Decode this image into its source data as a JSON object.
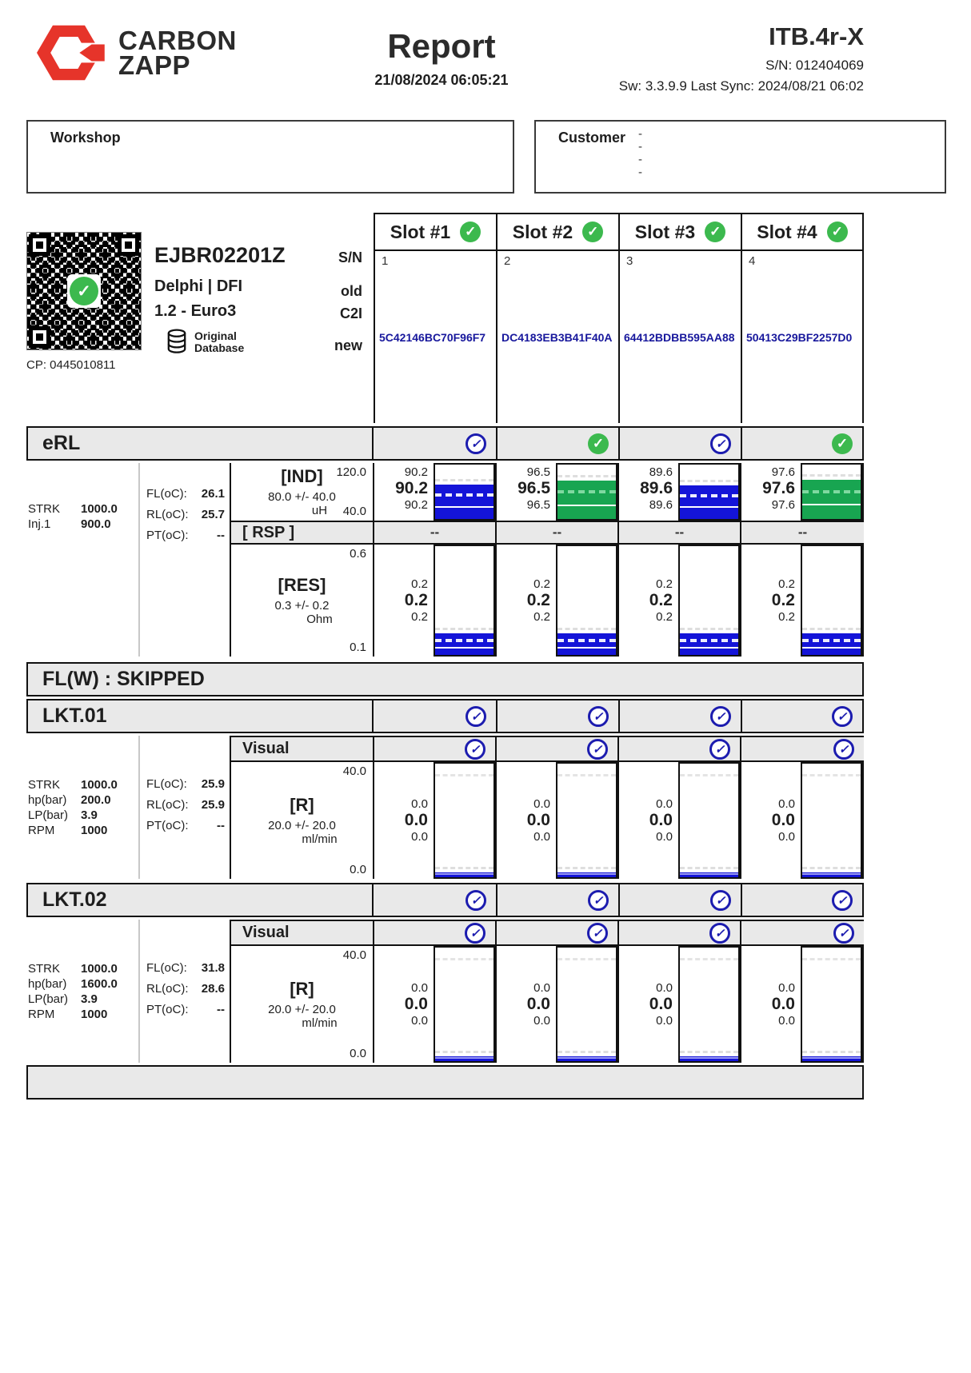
{
  "header": {
    "brand_line1": "CARBON",
    "brand_line2": "ZAPP",
    "title": "Report",
    "datetime": "21/08/2024 06:05:21",
    "model": "ITB.4r-X",
    "serial": "S/N: 012404069",
    "sync": "Sw: 3.3.9.9 Last Sync: 2024/08/21 06:02"
  },
  "workshop": {
    "label": "Workshop"
  },
  "customer": {
    "label": "Customer",
    "dashes": [
      "-",
      "-",
      "-",
      "-"
    ]
  },
  "injector": {
    "code": "EJBR02201Z",
    "brand": "Delphi | DFI",
    "variant": "1.2 - Euro3",
    "db_line1": "Original",
    "db_line2": "Database",
    "cp": "CP: 0445010811",
    "row_labels": {
      "sn": "S/N",
      "old": "old",
      "c2i": "C2I",
      "new": "new"
    }
  },
  "slots": [
    {
      "label": "Slot #1",
      "number": "1",
      "c2i_new": "5C42146BC70F96F7",
      "status": "green"
    },
    {
      "label": "Slot #2",
      "number": "2",
      "c2i_new": "DC4183EB3B41F40A",
      "status": "green"
    },
    {
      "label": "Slot #3",
      "number": "3",
      "c2i_new": "64412BDBB595AA88",
      "status": "green"
    },
    {
      "label": "Slot #4",
      "number": "4",
      "c2i_new": "50413C29BF2257D0",
      "status": "green"
    }
  ],
  "erl": {
    "title": "eRL",
    "statuses": [
      "blue",
      "green",
      "blue",
      "green"
    ],
    "params": [
      {
        "label": "STRK",
        "value": "1000.0"
      },
      {
        "label": "Inj.1",
        "value": "900.0"
      }
    ],
    "temps": [
      {
        "label": "FL(oC):",
        "value": "26.1"
      },
      {
        "label": "RL(oC):",
        "value": "25.7"
      },
      {
        "label": "PT(oC):",
        "value": "--"
      }
    ],
    "ind": {
      "name": "[IND]",
      "tolerance": "80.0 +/- 40.0",
      "unit": "uH",
      "axis_max": "120.0",
      "axis_min": "40.0",
      "results": [
        {
          "max": "90.2",
          "avg": "90.2",
          "min": "90.2",
          "bar_pct": 63,
          "color": "blue"
        },
        {
          "max": "96.5",
          "avg": "96.5",
          "min": "96.5",
          "bar_pct": 71,
          "color": "green"
        },
        {
          "max": "89.6",
          "avg": "89.6",
          "min": "89.6",
          "bar_pct": 62,
          "color": "blue"
        },
        {
          "max": "97.6",
          "avg": "97.6",
          "min": "97.6",
          "bar_pct": 72,
          "color": "green"
        }
      ]
    },
    "rsp": {
      "name": "[ RSP ]",
      "results": [
        "--",
        "--",
        "--",
        "--"
      ]
    },
    "res": {
      "name": "[RES]",
      "tolerance": "0.3 +/- 0.2",
      "unit": "Ohm",
      "axis_max": "0.6",
      "axis_min": "0.1",
      "results": [
        {
          "max": "0.2",
          "avg": "0.2",
          "min": "0.2",
          "bar_pct": 20,
          "color": "blue"
        },
        {
          "max": "0.2",
          "avg": "0.2",
          "min": "0.2",
          "bar_pct": 20,
          "color": "blue"
        },
        {
          "max": "0.2",
          "avg": "0.2",
          "min": "0.2",
          "bar_pct": 20,
          "color": "blue"
        },
        {
          "max": "0.2",
          "avg": "0.2",
          "min": "0.2",
          "bar_pct": 20,
          "color": "blue"
        }
      ]
    }
  },
  "flw": {
    "title": "FL(W) : SKIPPED"
  },
  "lkt01": {
    "title": "LKT.01",
    "statuses": [
      "blue",
      "blue",
      "blue",
      "blue"
    ],
    "visual_label": "Visual",
    "visual_statuses": [
      "blue",
      "blue",
      "blue",
      "blue"
    ],
    "params": [
      {
        "label": "STRK",
        "value": "1000.0"
      },
      {
        "label": "hp(bar)",
        "value": "200.0"
      },
      {
        "label": "LP(bar)",
        "value": "3.9"
      },
      {
        "label": "RPM",
        "value": "1000"
      }
    ],
    "temps": [
      {
        "label": "FL(oC):",
        "value": "25.9"
      },
      {
        "label": "RL(oC):",
        "value": "25.9"
      },
      {
        "label": "PT(oC):",
        "value": "--"
      }
    ],
    "r": {
      "name": "[R]",
      "tolerance": "20.0 +/- 20.0",
      "unit": "ml/min",
      "axis_max": "40.0",
      "axis_min": "0.0",
      "results": [
        {
          "max": "0.0",
          "avg": "0.0",
          "min": "0.0",
          "bar_pct": 4,
          "color": "blue"
        },
        {
          "max": "0.0",
          "avg": "0.0",
          "min": "0.0",
          "bar_pct": 4,
          "color": "blue"
        },
        {
          "max": "0.0",
          "avg": "0.0",
          "min": "0.0",
          "bar_pct": 4,
          "color": "blue"
        },
        {
          "max": "0.0",
          "avg": "0.0",
          "min": "0.0",
          "bar_pct": 4,
          "color": "blue"
        }
      ]
    }
  },
  "lkt02": {
    "title": "LKT.02",
    "statuses": [
      "blue",
      "blue",
      "blue",
      "blue"
    ],
    "visual_label": "Visual",
    "visual_statuses": [
      "blue",
      "blue",
      "blue",
      "blue"
    ],
    "params": [
      {
        "label": "STRK",
        "value": "1000.0"
      },
      {
        "label": "hp(bar)",
        "value": "1600.0"
      },
      {
        "label": "LP(bar)",
        "value": "3.9"
      },
      {
        "label": "RPM",
        "value": "1000"
      }
    ],
    "temps": [
      {
        "label": "FL(oC):",
        "value": "31.8"
      },
      {
        "label": "RL(oC):",
        "value": "28.6"
      },
      {
        "label": "PT(oC):",
        "value": "--"
      }
    ],
    "r": {
      "name": "[R]",
      "tolerance": "20.0 +/- 20.0",
      "unit": "ml/min",
      "axis_max": "40.0",
      "axis_min": "0.0",
      "results": [
        {
          "max": "0.0",
          "avg": "0.0",
          "min": "0.0",
          "bar_pct": 4,
          "color": "blue"
        },
        {
          "max": "0.0",
          "avg": "0.0",
          "min": "0.0",
          "bar_pct": 4,
          "color": "blue"
        },
        {
          "max": "0.0",
          "avg": "0.0",
          "min": "0.0",
          "bar_pct": 4,
          "color": "blue"
        },
        {
          "max": "0.0",
          "avg": "0.0",
          "min": "0.0",
          "bar_pct": 4,
          "color": "blue"
        }
      ]
    }
  }
}
